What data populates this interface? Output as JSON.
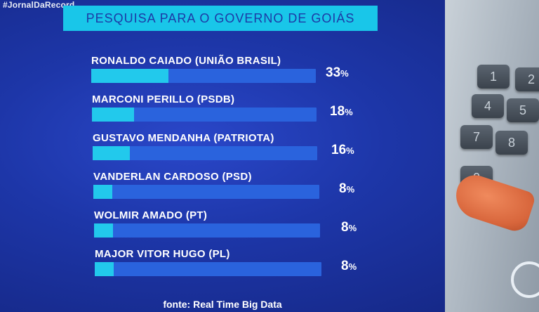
{
  "hashtag": "#JornalDaRecord",
  "chart_data": {
    "type": "bar",
    "title": "PESQUISA PARA O GOVERNO DE GOIÁS",
    "categories": [
      "RONALDO CAIADO (UNIÃO BRASIL)",
      "MARCONI PERILLO (PSDB)",
      "GUSTAVO MENDANHA (PATRIOTA)",
      "VANDERLAN CARDOSO (PSD)",
      "WOLMIR AMADO (PT)",
      "MAJOR VITOR HUGO (PL)"
    ],
    "values": [
      33,
      18,
      16,
      8,
      8,
      8
    ],
    "value_labels": [
      "33",
      "18",
      "16",
      "8",
      "8",
      "8"
    ],
    "unit": "%",
    "xlim": [
      0,
      100
    ],
    "orientation": "horizontal",
    "grid": false,
    "legend": "none",
    "colors": {
      "fill": "#22c9ec",
      "track": "#2a63dd",
      "title_bar": "#19c6e9"
    }
  },
  "source": "fonte: Real Time Big Data",
  "keypad": [
    "1",
    "2",
    "4",
    "5",
    "7",
    "8",
    "0"
  ]
}
